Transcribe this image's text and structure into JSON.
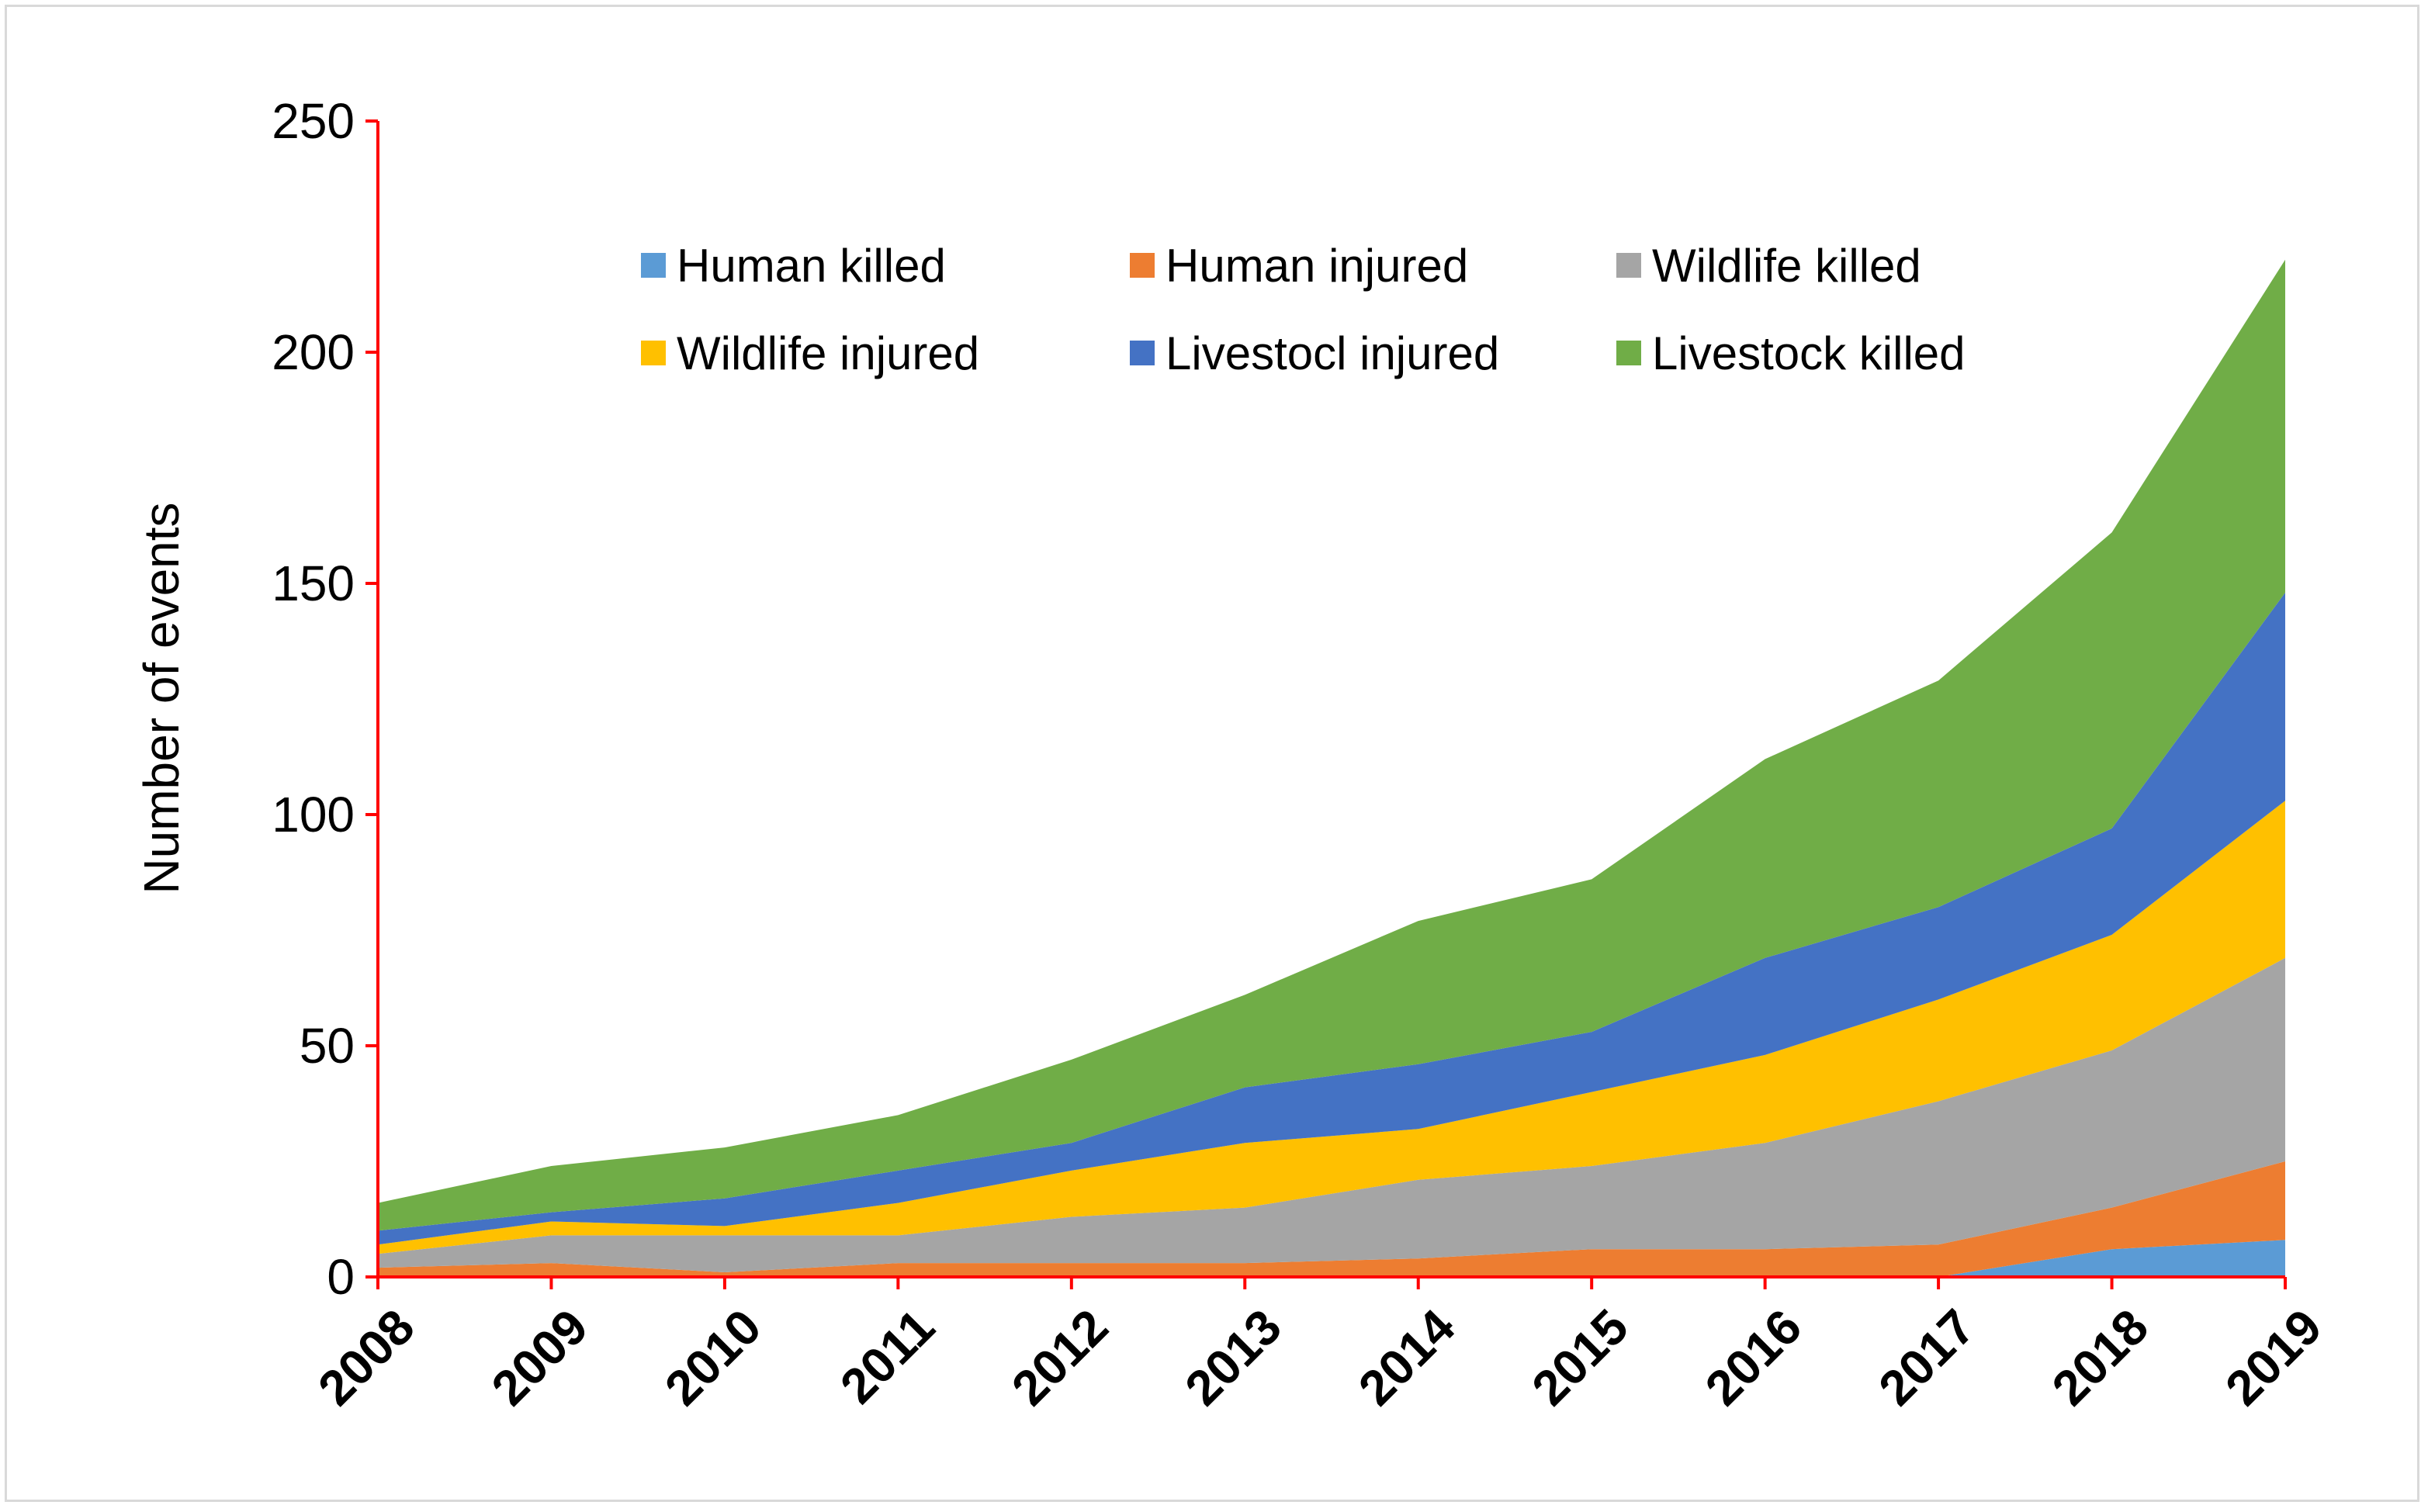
{
  "chart_data": {
    "type": "area",
    "stacked": true,
    "title": "",
    "xlabel": "",
    "ylabel": "Number of events",
    "ylim": [
      0,
      250
    ],
    "yticks": [
      0,
      50,
      100,
      150,
      200,
      250
    ],
    "x": [
      "2008",
      "2009",
      "2010",
      "2011",
      "2012",
      "2013",
      "2014",
      "2015",
      "2016",
      "2017",
      "2018",
      "2019"
    ],
    "grid": false,
    "legend_position": "top-inside",
    "axis_color": "#ff0000",
    "series": [
      {
        "name": "Human killed",
        "color": "#5b9bd5",
        "values": [
          0,
          0,
          0,
          0,
          0,
          0,
          0,
          0,
          0,
          0,
          6,
          8
        ]
      },
      {
        "name": "Human injured",
        "color": "#ed7d31",
        "values": [
          2,
          3,
          1,
          3,
          3,
          3,
          4,
          6,
          6,
          7,
          9,
          17
        ]
      },
      {
        "name": "Wildlife killed",
        "color": "#a5a5a5",
        "values": [
          3,
          6,
          8,
          6,
          10,
          12,
          17,
          18,
          23,
          31,
          34,
          44
        ]
      },
      {
        "name": "Wildlife injured",
        "color": "#ffc000",
        "values": [
          2,
          3,
          2,
          7,
          10,
          14,
          11,
          16,
          19,
          22,
          25,
          34
        ]
      },
      {
        "name": "Livestocl injured",
        "color": "#4472c4",
        "values": [
          3,
          2,
          6,
          7,
          6,
          12,
          14,
          13,
          21,
          20,
          23,
          45
        ]
      },
      {
        "name": "Livestock killed",
        "color": "#70ad47",
        "values": [
          6,
          10,
          11,
          12,
          18,
          20,
          31,
          33,
          43,
          49,
          64,
          72
        ]
      }
    ]
  }
}
